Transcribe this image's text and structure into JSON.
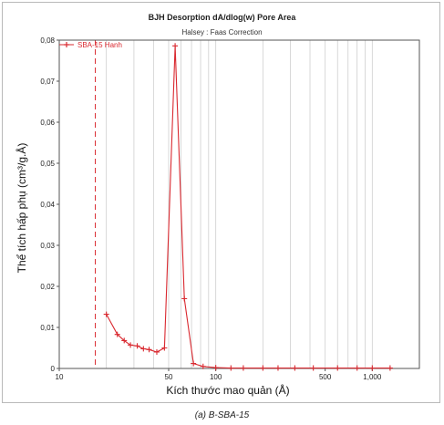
{
  "chart_data": {
    "type": "line",
    "title": "BJH Desorption dA/dlog(w) Pore Area",
    "subtitle": "Halsey : Faas Correction",
    "xlabel": "Kích thước mao quản (Å)",
    "ylabel": "Thể tích hấp phụ (cm³/g.Å)",
    "x_scale": "log",
    "xlim": [
      10,
      2000
    ],
    "ylim": [
      0,
      0.08
    ],
    "x_ticks": [
      10,
      50,
      100,
      500,
      1000
    ],
    "x_tick_labels": [
      "10",
      "50",
      "100",
      "500",
      "1,000"
    ],
    "y_ticks": [
      0,
      0.01,
      0.02,
      0.03,
      0.04,
      0.05,
      0.06,
      0.07,
      0.08
    ],
    "y_tick_labels": [
      "0",
      "0,01",
      "0,02",
      "0,03",
      "0,04",
      "0,05",
      "0,06",
      "0,07",
      "0,08"
    ],
    "grid": true,
    "legend_position": "top-left",
    "reference_line_x": 17,
    "series": [
      {
        "name": "SBA-15 Hanh",
        "color": "#d9282f",
        "x": [
          20,
          23.5,
          26,
          28.5,
          31.5,
          34.5,
          37.5,
          42,
          47,
          55,
          63,
          72,
          83,
          100,
          125,
          150,
          200,
          250,
          320,
          420,
          600,
          800,
          1000,
          1300
        ],
        "y": [
          0.0132,
          0.0083,
          0.0068,
          0.0057,
          0.0055,
          0.0048,
          0.0046,
          0.004,
          0.005,
          0.0786,
          0.017,
          0.0012,
          0.0005,
          0.0002,
          0.0001,
          0.0001,
          0.0001,
          0.0001,
          0.0001,
          0.0001,
          0.0001,
          0.0001,
          0.0001,
          0.0001
        ]
      }
    ]
  },
  "caption": "(a) B-SBA-15"
}
